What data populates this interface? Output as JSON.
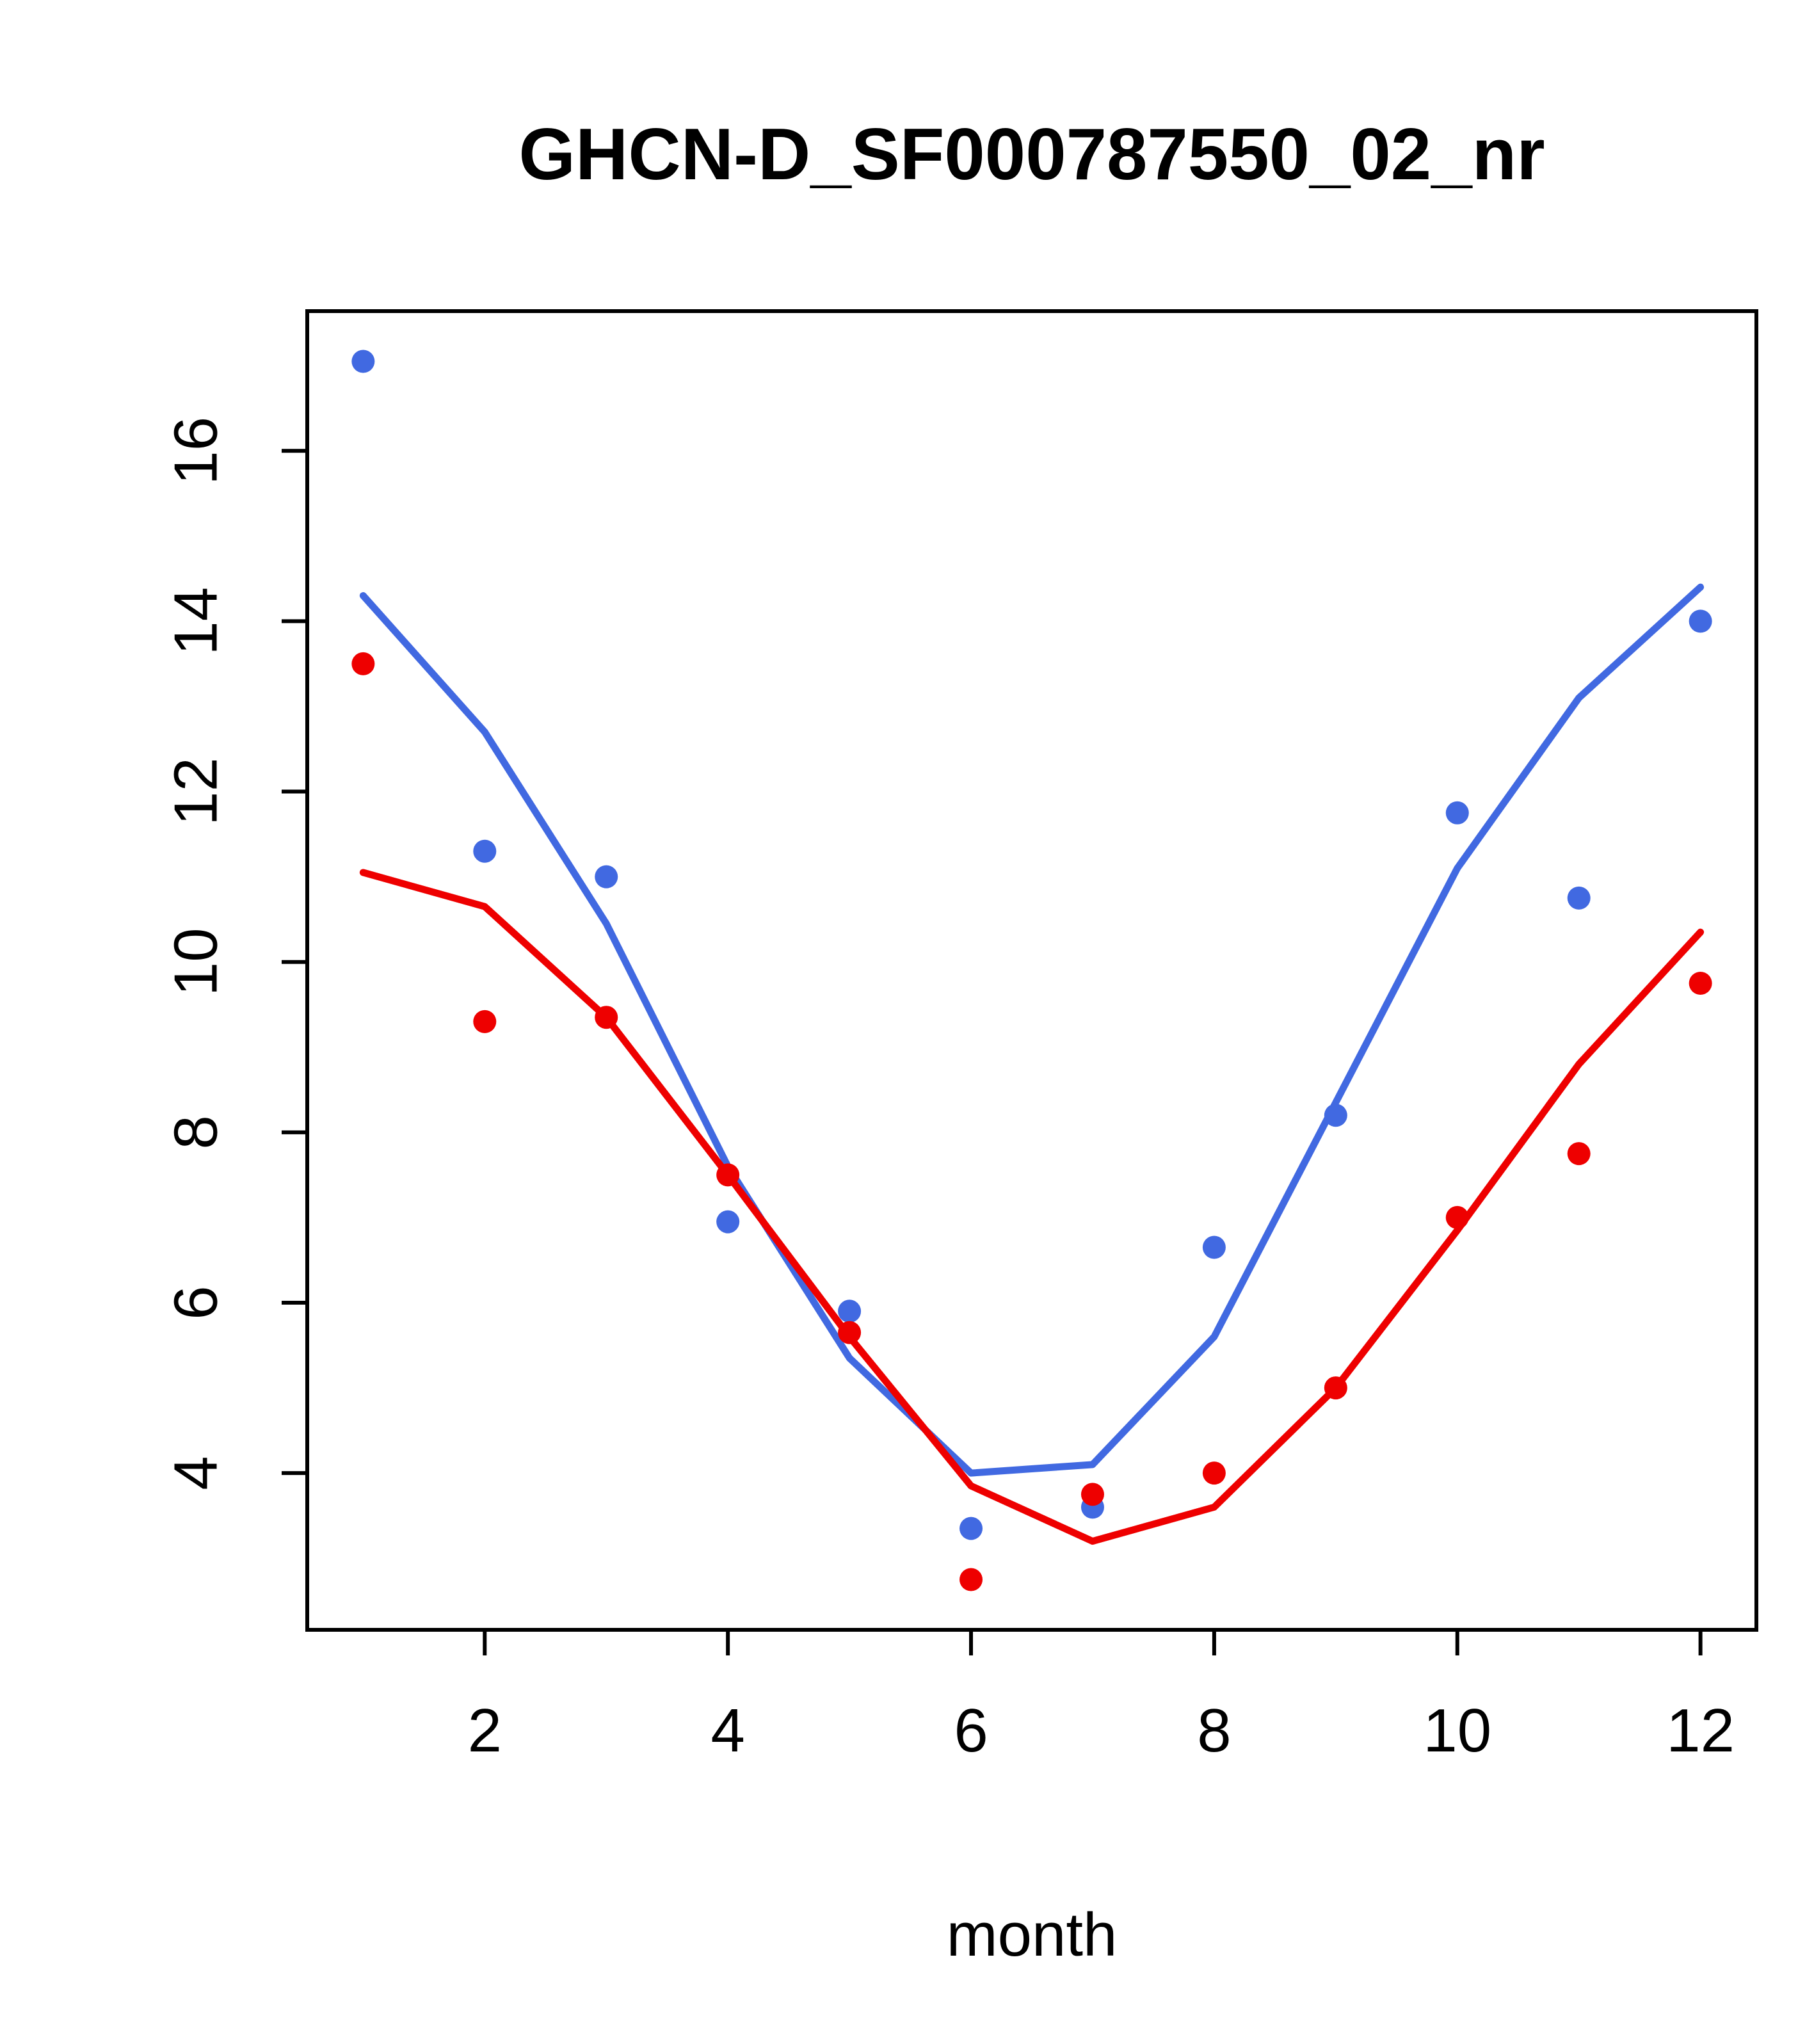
{
  "page": {
    "background_color": "#FFFFFF",
    "text_color": "#000000"
  },
  "chart_data": {
    "type": "scatter",
    "title": "GHCN-D_SF000787550_02_nr",
    "xlabel": "month",
    "ylabel": "",
    "x": [
      1,
      2,
      3,
      4,
      5,
      6,
      7,
      8,
      9,
      10,
      11,
      12
    ],
    "xlim": [
      0.54,
      12.46
    ],
    "ylim": [
      2.16,
      17.64
    ],
    "xticks": [
      2,
      4,
      6,
      8,
      10,
      12
    ],
    "yticks": [
      4,
      6,
      8,
      10,
      12,
      14,
      16
    ],
    "grid": false,
    "legend": "none",
    "series": [
      {
        "name": "blue-line",
        "type": "line",
        "color": "#4169E1",
        "values": [
          14.3,
          12.7,
          10.45,
          7.6,
          5.35,
          4.0,
          4.1,
          5.6,
          8.35,
          11.1,
          13.1,
          14.4
        ]
      },
      {
        "name": "red-line",
        "type": "line",
        "color": "#EE0000",
        "values": [
          11.05,
          10.65,
          9.35,
          7.5,
          5.6,
          3.85,
          3.2,
          3.6,
          5.0,
          6.85,
          8.8,
          10.35
        ]
      },
      {
        "name": "blue-points",
        "type": "points",
        "color": "#4169E1",
        "values": [
          17.05,
          11.3,
          11.0,
          6.95,
          5.9,
          3.35,
          3.6,
          6.65,
          8.2,
          11.75,
          10.75,
          14.0
        ]
      },
      {
        "name": "red-points",
        "type": "points",
        "color": "#EE0000",
        "values": [
          13.5,
          9.3,
          9.35,
          7.5,
          5.65,
          2.75,
          3.75,
          4.0,
          5.0,
          7.0,
          7.75,
          9.75
        ]
      }
    ]
  }
}
